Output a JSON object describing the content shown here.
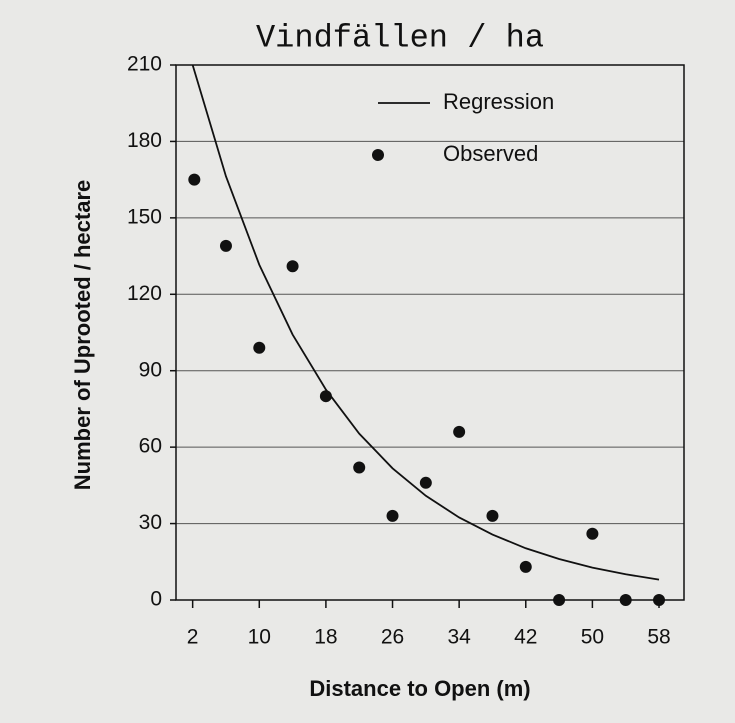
{
  "chart_data": {
    "type": "scatter",
    "title": "Vindfällen / ha",
    "x_label": "Distance to Open (m)",
    "y_label": "Number of Uprooted / hectare",
    "xlim": [
      0,
      61
    ],
    "xticks": [
      2,
      10,
      18,
      26,
      34,
      42,
      50,
      58
    ],
    "ylim": [
      0,
      210
    ],
    "yticks": [
      0,
      30,
      60,
      90,
      120,
      150,
      180,
      210
    ],
    "grid": true,
    "legend": "upper right",
    "series": [
      {
        "name": "Regression",
        "type": "line",
        "color": "#111111",
        "x": [
          2,
          6,
          10,
          14,
          18,
          22,
          26,
          30,
          34,
          38,
          42,
          46,
          50,
          54,
          58
        ],
        "values": [
          210,
          166.3,
          131.6,
          104.2,
          82.6,
          65.3,
          51.7,
          40.9,
          32.4,
          25.7,
          20.3,
          16.1,
          12.7,
          10.1,
          8
        ]
      },
      {
        "name": "Observed",
        "type": "scatter",
        "color": "#111111",
        "x": [
          2.2,
          6,
          10,
          14,
          18,
          22,
          26,
          30,
          34,
          38,
          42,
          46,
          50,
          54,
          58
        ],
        "values": [
          165,
          139,
          99,
          131,
          80,
          52,
          33,
          46,
          66,
          33,
          13,
          0,
          26,
          0,
          0
        ]
      }
    ]
  }
}
